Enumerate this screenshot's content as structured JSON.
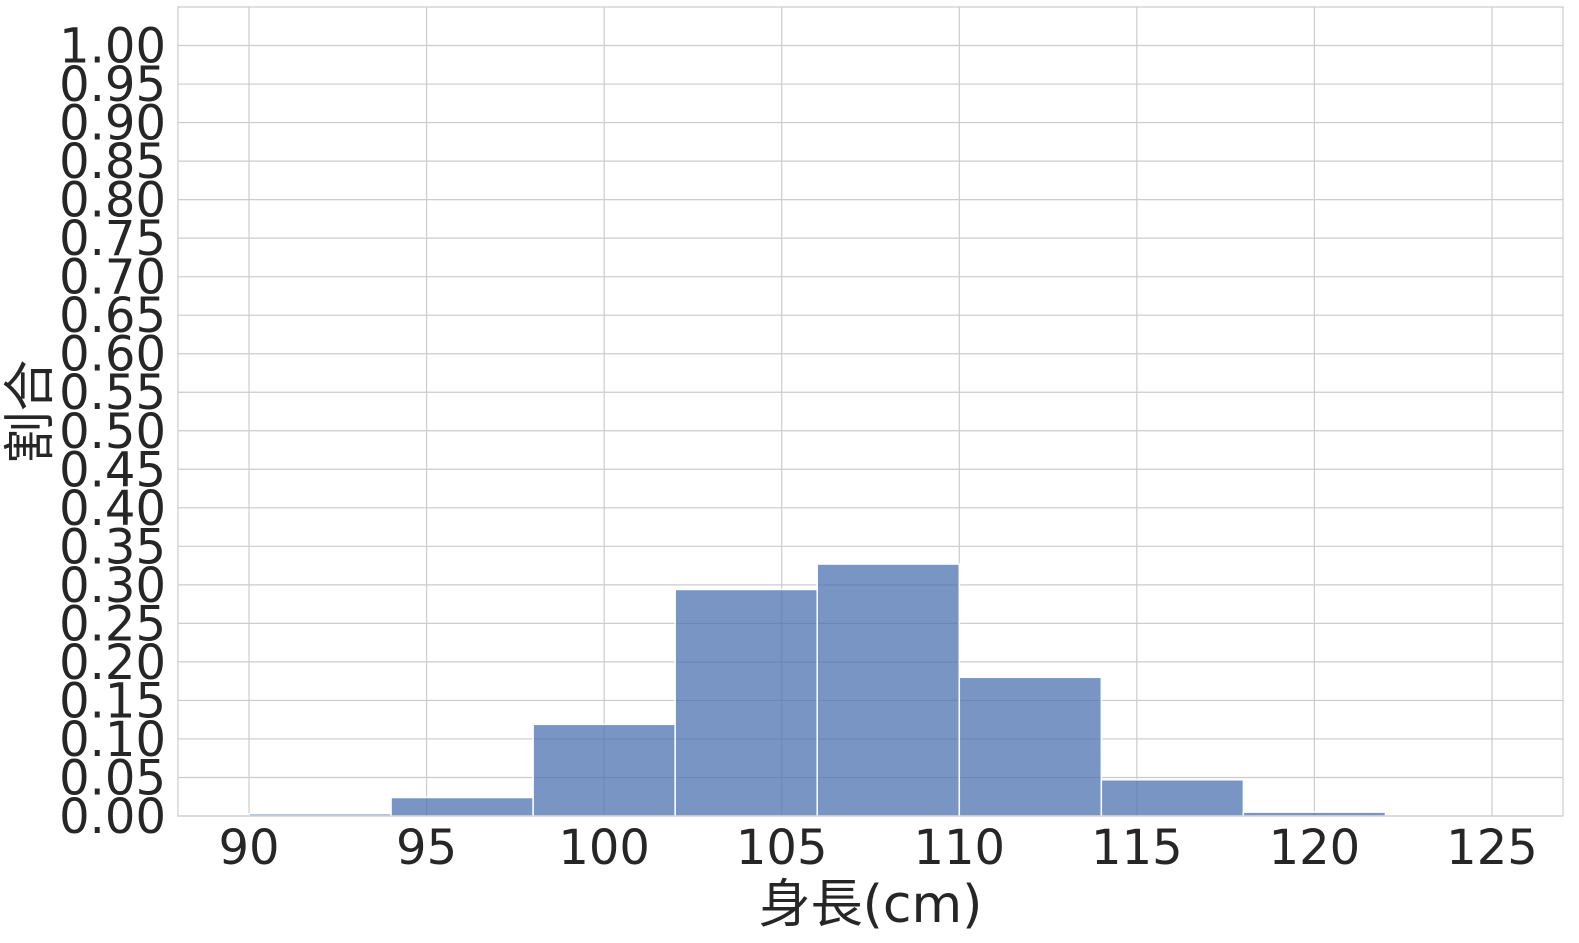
{
  "chart_data": {
    "type": "bar",
    "subtype": "histogram",
    "title": "",
    "xlabel": "身長(cm)",
    "ylabel": "割合",
    "xlim": [
      88,
      127
    ],
    "ylim": [
      0,
      1.05
    ],
    "grid": true,
    "legend": "none",
    "bar_color": "#4c72b0",
    "x_ticks": [
      90,
      95,
      100,
      105,
      110,
      115,
      120,
      125
    ],
    "x_tick_labels": [
      "90",
      "95",
      "100",
      "105",
      "110",
      "115",
      "120",
      "125"
    ],
    "y_ticks": [
      0,
      0.05,
      0.1,
      0.15,
      0.2,
      0.25,
      0.3,
      0.35,
      0.4,
      0.45,
      0.5,
      0.55,
      0.6,
      0.65,
      0.7,
      0.75,
      0.8,
      0.85,
      0.9,
      0.95,
      1.0
    ],
    "y_tick_labels": [
      "0.00",
      "0.05",
      "0.10",
      "0.15",
      "0.20",
      "0.25",
      "0.30",
      "0.35",
      "0.40",
      "0.45",
      "0.50",
      "0.55",
      "0.60",
      "0.65",
      "0.70",
      "0.75",
      "0.80",
      "0.85",
      "0.90",
      "0.95",
      "1.00"
    ],
    "bins": [
      {
        "start": 90,
        "end": 94,
        "value": 0.003
      },
      {
        "start": 94,
        "end": 98,
        "value": 0.024
      },
      {
        "start": 98,
        "end": 102,
        "value": 0.119
      },
      {
        "start": 102,
        "end": 106,
        "value": 0.294
      },
      {
        "start": 106,
        "end": 110,
        "value": 0.327
      },
      {
        "start": 110,
        "end": 114,
        "value": 0.18
      },
      {
        "start": 114,
        "end": 118,
        "value": 0.047
      },
      {
        "start": 118,
        "end": 122,
        "value": 0.005
      }
    ]
  }
}
